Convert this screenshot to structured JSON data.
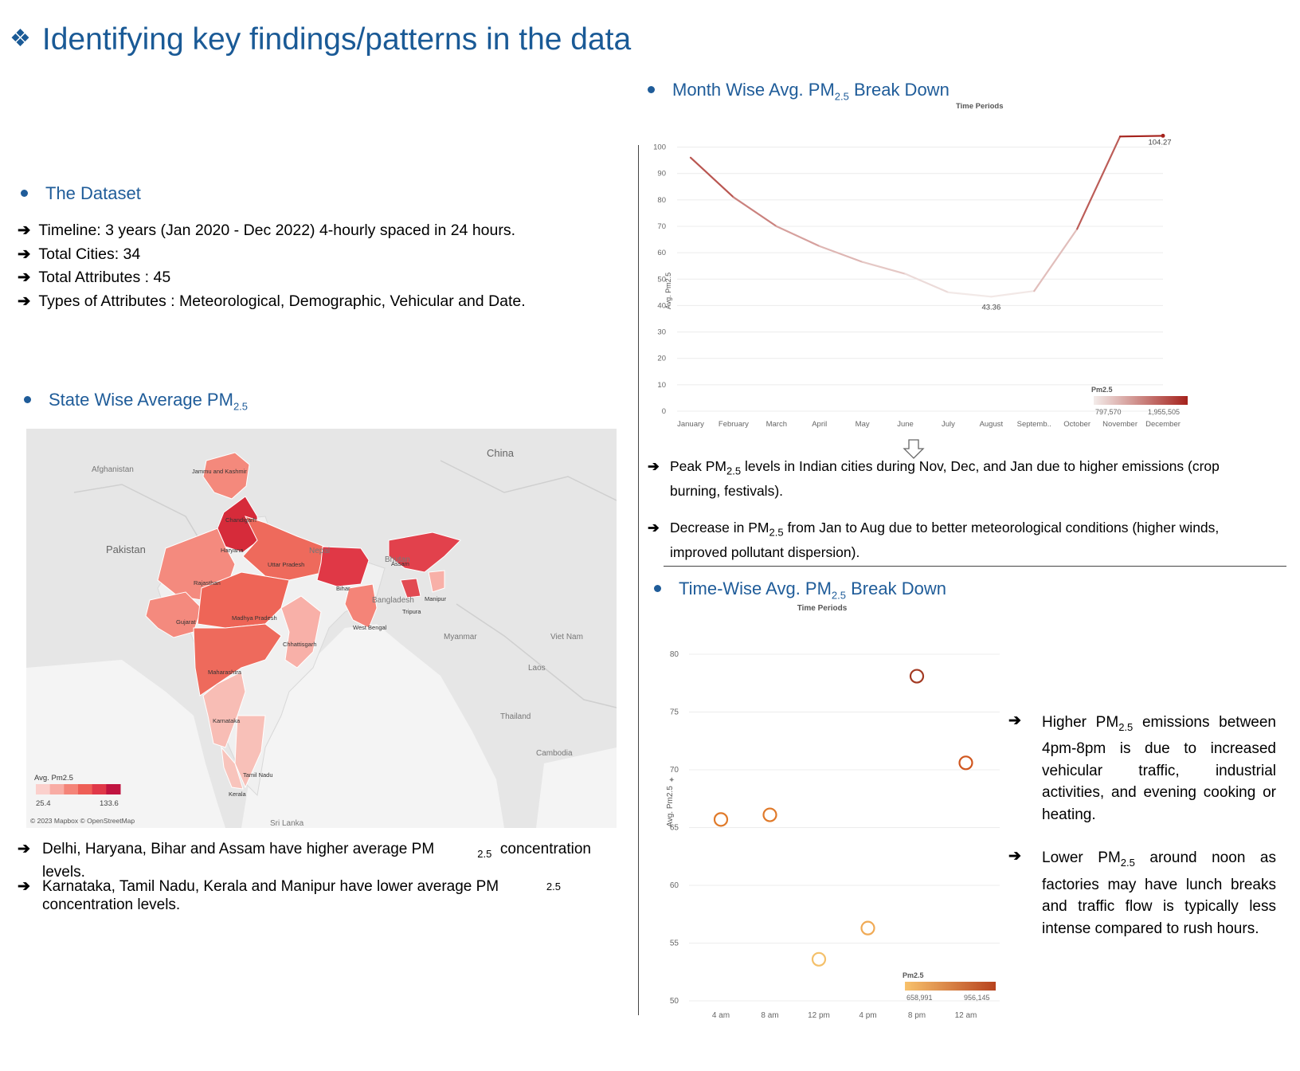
{
  "title": "Identifying key findings/patterns in the data",
  "dataset": {
    "heading": "The  Dataset",
    "items": [
      "Timeline: 3 years (Jan 2020 - Dec 2022) 4-hourly spaced in 24 hours.",
      "Total Cities: 34",
      "Total Attributes : 45",
      "Types of Attributes : Meteorological, Demographic, Vehicular and Date."
    ]
  },
  "state_section": {
    "heading": "State Wise Average PM",
    "heading_sub": "2.5",
    "map": {
      "countries": [
        "Afghanistan",
        "Pakistan",
        "China",
        "Nepal",
        "Bhutan",
        "Bangladesh",
        "Myanmar",
        "Viet Nam",
        "Laos",
        "Thailand",
        "Cambodia",
        "Sri Lanka"
      ],
      "states": [
        "Jammu and Kashmir",
        "Chandigarh",
        "Haryana",
        "Uttar Pradesh",
        "Rajasthan",
        "Bihar",
        "Assam",
        "Manipur",
        "Tripura",
        "Gujarat",
        "Madhya Pradesh",
        "West Bengal",
        "Chhattisgarh",
        "Maharashtra",
        "Karnataka",
        "Tamil Nadu",
        "Kerala"
      ],
      "legend_title": "Avg. Pm2.5",
      "legend_min": "25.4",
      "legend_max": "133.6",
      "colors": [
        "#fbd0cc",
        "#f8aca4",
        "#f48478",
        "#ee5e56",
        "#e03848",
        "#c01440"
      ],
      "credit": "© 2023 Mapbox © OpenStreetMap"
    },
    "notes": [
      {
        "pre": "Delhi, Haryana, Bihar and Assam have higher average PM",
        "sub": "2.5",
        "post": "concentration",
        "cont": "levels."
      },
      {
        "pre": "Karnataka, Tamil Nadu, Kerala and Manipur have lower average PM",
        "sub": "2.5",
        "cont": "concentration levels."
      }
    ]
  },
  "month_section": {
    "heading_pre": "Month Wise Avg. PM",
    "heading_sub": "2.5",
    "heading_post": " Break Down",
    "notes": [
      {
        "pre": "Peak PM",
        "sub": "2.5",
        "post": " levels in Indian cities during Nov, Dec, and Jan due to higher emissions (crop",
        "cont": "burning, festivals)."
      },
      {
        "pre": "Decrease in PM",
        "sub": "2.5",
        "post": " from Jan to Aug due to better meteorological conditions (higher winds,",
        "cont": "improved pollutant dispersion)."
      }
    ]
  },
  "time_section": {
    "heading_pre": "Time-Wise Avg. PM",
    "heading_sub": "2.5",
    "heading_post": " Break Down",
    "notes": [
      {
        "text": "Higher PM<sub>2.5</sub> emissions between 4pm-8pm is due to increased vehicular traffic, industrial activities, and evening cooking or heating."
      },
      {
        "text": "Lower PM<sub>2.5</sub> around noon as factories may have lunch breaks and traffic flow is typically less intense compared to rush hours."
      }
    ]
  },
  "chart_data": [
    {
      "type": "line",
      "title": "Time Periods",
      "ylabel": "Avg. Pm2.5",
      "categories": [
        "January",
        "February",
        "March",
        "April",
        "May",
        "June",
        "July",
        "August",
        "Septemb..",
        "October",
        "November",
        "December"
      ],
      "series": [
        {
          "values": [
            96,
            81,
            70,
            62.5,
            56.5,
            52,
            45,
            43.36,
            45.5,
            69,
            104,
            104.27
          ]
        }
      ],
      "ylim": [
        0,
        105
      ],
      "yticks": [
        0,
        10,
        20,
        30,
        40,
        50,
        60,
        70,
        80,
        90,
        100
      ],
      "annotations": [
        {
          "label": "104.27",
          "category": "December"
        },
        {
          "label": "43.36",
          "category": "August"
        }
      ],
      "legend": {
        "title": "Pm2.5",
        "min": "797,570",
        "max": "1,955,505",
        "colors": [
          "#f3ecea",
          "#a5221c"
        ]
      },
      "grid": true
    },
    {
      "type": "scatter",
      "title": "Time Periods",
      "ylabel": "Avg. Pm2.5",
      "categories": [
        "4 am",
        "8 am",
        "12 pm",
        "4 pm",
        "8 pm",
        "12 am"
      ],
      "values": [
        65.7,
        66.1,
        53.6,
        56.3,
        78.1,
        70.6
      ],
      "marker_colors": [
        "#e07a2a",
        "#e07a2a",
        "#f4c06a",
        "#f0aa55",
        "#a33a22",
        "#d0561e"
      ],
      "ylim": [
        50,
        82
      ],
      "yticks": [
        50,
        55,
        60,
        65,
        70,
        75,
        80
      ],
      "legend": {
        "title": "Pm2.5",
        "min": "658,991",
        "max": "956,145",
        "colors": [
          "#f8c26c",
          "#b7421e"
        ]
      },
      "grid": true
    }
  ]
}
